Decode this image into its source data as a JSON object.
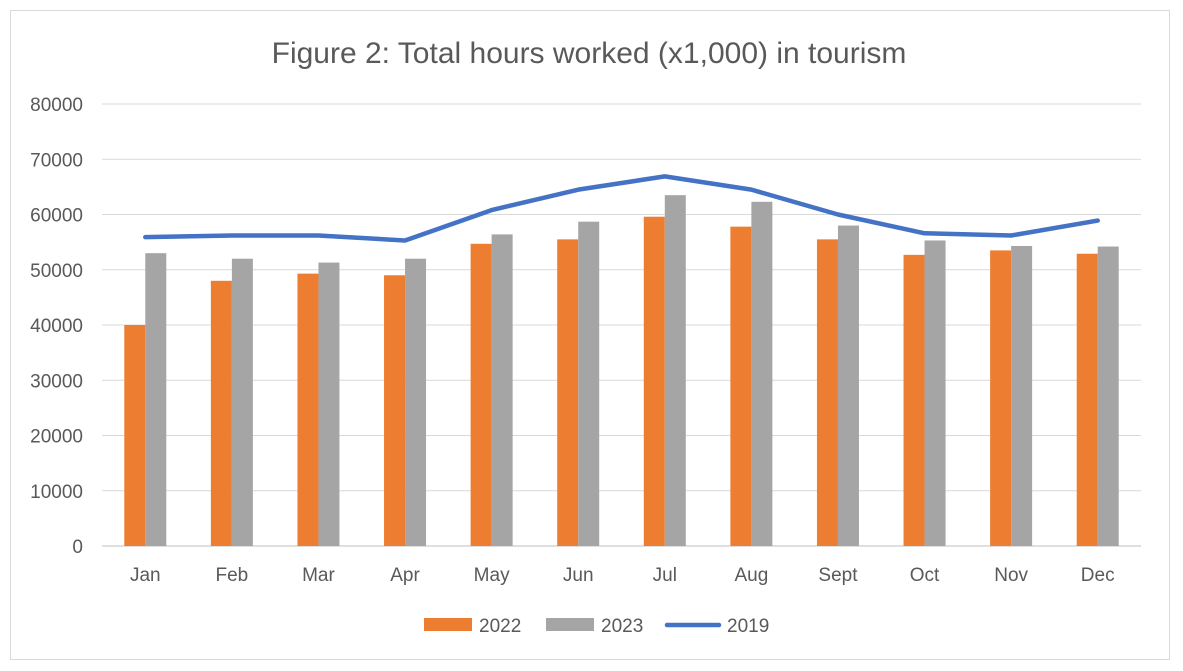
{
  "chart_data": {
    "type": "bar",
    "title": "Figure 2: Total hours worked (x1,000) in tourism",
    "xlabel": "",
    "ylabel": "",
    "categories": [
      "Jan",
      "Feb",
      "Mar",
      "Apr",
      "May",
      "Jun",
      "Jul",
      "Aug",
      "Sept",
      "Oct",
      "Nov",
      "Dec"
    ],
    "ylim": [
      0,
      80000
    ],
    "yticks": [
      "0",
      "10000",
      "20000",
      "30000",
      "40000",
      "50000",
      "60000",
      "70000",
      "80000"
    ],
    "grid": true,
    "legend_position": "bottom",
    "series": [
      {
        "name": "2022",
        "kind": "bar",
        "color": "#ED7D31",
        "values": [
          40000,
          48000,
          49300,
          49000,
          54700,
          55500,
          59600,
          57800,
          55500,
          52700,
          53500,
          52900
        ]
      },
      {
        "name": "2023",
        "kind": "bar",
        "color": "#A5A5A5",
        "values": [
          53000,
          52000,
          51300,
          52000,
          56400,
          58700,
          63500,
          62300,
          58000,
          55300,
          54300,
          54200
        ]
      },
      {
        "name": "2019",
        "kind": "line",
        "color": "#4472C4",
        "values": [
          55900,
          56200,
          56200,
          55300,
          60800,
          64500,
          66900,
          64500,
          60000,
          56600,
          56200,
          58900
        ]
      }
    ]
  }
}
